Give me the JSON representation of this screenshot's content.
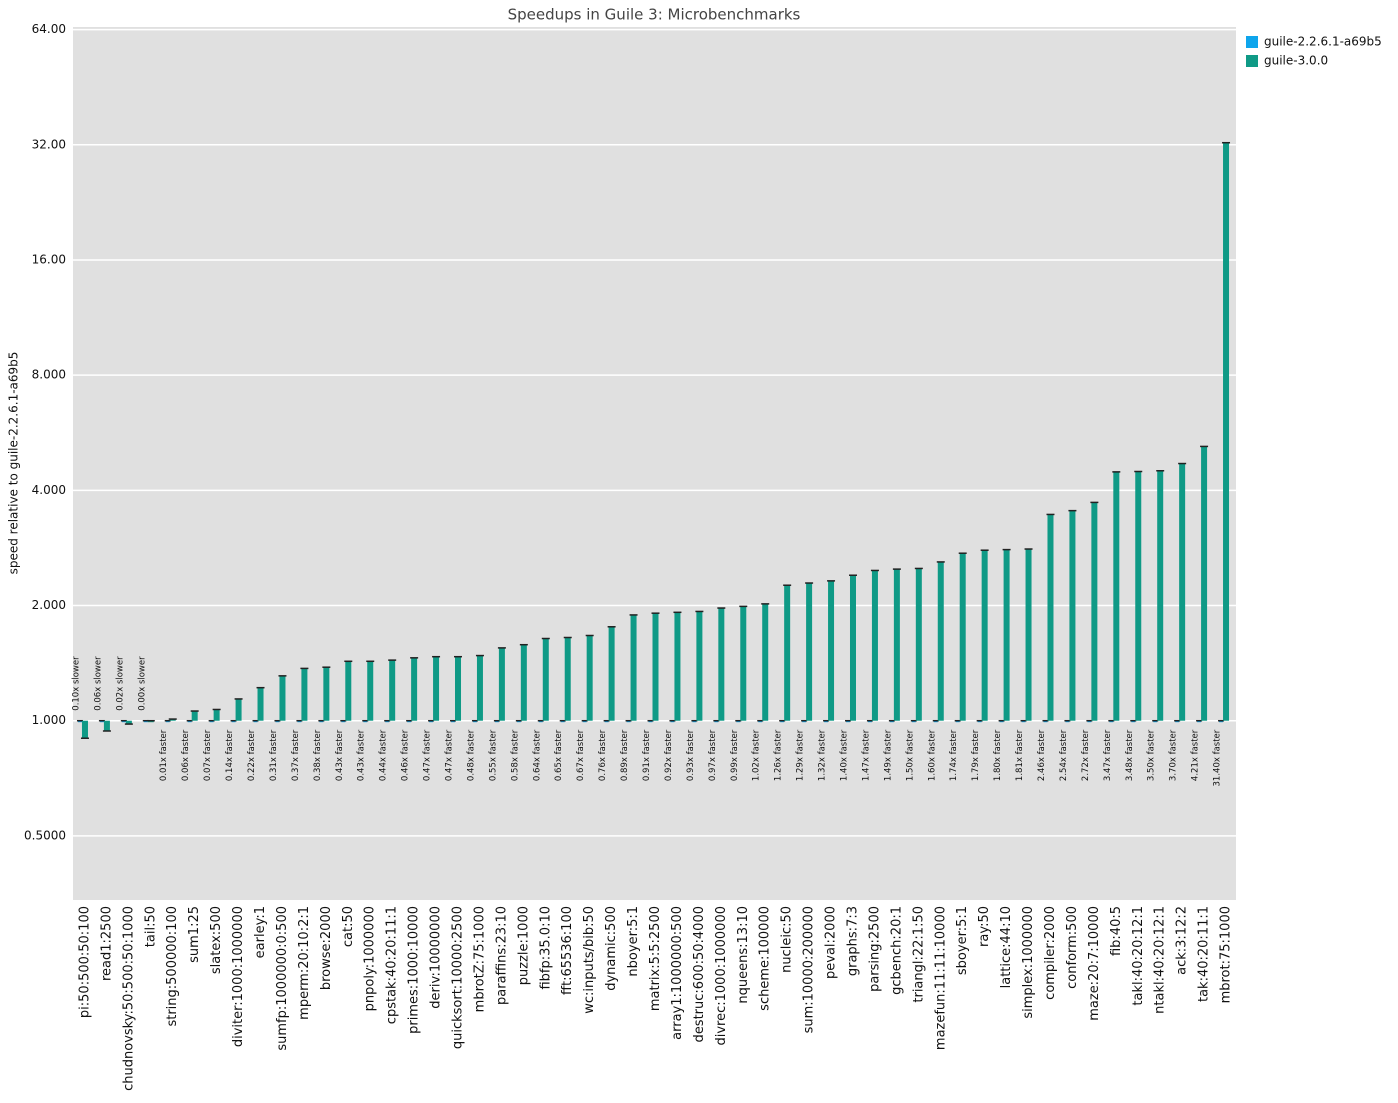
{
  "chart_data": {
    "type": "bar",
    "title": "Speedups in Guile 3: Microbenchmarks",
    "ylabel": "speed relative to guile-2.2.6.1-a69b5",
    "yscale": "log",
    "log_base": 2,
    "grid": true,
    "legend": "top-right",
    "ylim": [
      0.34,
      65
    ],
    "yticks": [
      {
        "value": 0.5,
        "label": "0.5000"
      },
      {
        "value": 1,
        "label": "1.000"
      },
      {
        "value": 2,
        "label": "2.000"
      },
      {
        "value": 4,
        "label": "4.000"
      },
      {
        "value": 8,
        "label": "8.000"
      },
      {
        "value": 16,
        "label": "16.00"
      },
      {
        "value": 32,
        "label": "32.00"
      },
      {
        "value": 64,
        "label": "64.00"
      }
    ],
    "categories": [
      "pi:50:500:50:100",
      "read1:2500",
      "chudnovsky:50:500:50:1000",
      "tail:50",
      "string:500000:100",
      "sum1:25",
      "slatex:500",
      "diviter:1000:1000000",
      "earley:1",
      "sumfp:1000000:0:500",
      "mperm:20:10:2:1",
      "browse:2000",
      "cat:50",
      "pnpoly:1000000",
      "cpstak:40:20:11:1",
      "primes:1000:10000",
      "deriv:10000000",
      "quicksort:10000:2500",
      "mbrotZ:75:1000",
      "paraffins:23:10",
      "puzzle:1000",
      "fibfp:35.0:10",
      "fft:65536:100",
      "wc:inputs/bib:50",
      "dynamic:500",
      "nboyer:5:1",
      "matrix:5:5:2500",
      "array1:1000000:500",
      "destruc:600:50:4000",
      "divrec:1000:1000000",
      "nqueens:13:10",
      "scheme:100000",
      "nucleic:50",
      "sum:10000:200000",
      "peval:2000",
      "graphs:7:3",
      "parsing:2500",
      "gcbench:20:1",
      "triangl:22:1:50",
      "mazefun:11:11:10000",
      "sboyer:5:1",
      "ray:50",
      "lattice:44:10",
      "simplex:1000000",
      "compiler:2000",
      "conform:500",
      "maze:20:7:10000",
      "fib:40:5",
      "takl:40:20:12:1",
      "ntakl:40:20:12:1",
      "ack:3:12:2",
      "tak:40:20:11:1",
      "mbrot:75:1000"
    ],
    "series": [
      {
        "name": "guile-2.2.6.1-a69b5",
        "color": "#0ea5ec",
        "values": [
          1,
          1,
          1,
          1,
          1,
          1,
          1,
          1,
          1,
          1,
          1,
          1,
          1,
          1,
          1,
          1,
          1,
          1,
          1,
          1,
          1,
          1,
          1,
          1,
          1,
          1,
          1,
          1,
          1,
          1,
          1,
          1,
          1,
          1,
          1,
          1,
          1,
          1,
          1,
          1,
          1,
          1,
          1,
          1,
          1,
          1,
          1,
          1,
          1,
          1,
          1,
          1,
          1
        ]
      },
      {
        "name": "guile-3.0.0",
        "color": "#0f9a86",
        "values": [
          0.9,
          0.94,
          0.98,
          1.0,
          1.01,
          1.06,
          1.07,
          1.14,
          1.22,
          1.31,
          1.37,
          1.38,
          1.43,
          1.43,
          1.44,
          1.46,
          1.47,
          1.47,
          1.48,
          1.55,
          1.58,
          1.64,
          1.65,
          1.67,
          1.76,
          1.89,
          1.91,
          1.92,
          1.93,
          1.97,
          1.99,
          2.02,
          2.26,
          2.29,
          2.32,
          2.4,
          2.47,
          2.49,
          2.5,
          2.6,
          2.74,
          2.79,
          2.8,
          2.81,
          3.46,
          3.54,
          3.72,
          4.47,
          4.48,
          4.5,
          4.7,
          5.21,
          32.4
        ],
        "value_labels": [
          "0.10x slower",
          "0.06x slower",
          "0.02x slower",
          "0.00x slower",
          "0.01x faster",
          "0.06x faster",
          "0.07x faster",
          "0.14x faster",
          "0.22x faster",
          "0.31x faster",
          "0.37x faster",
          "0.38x faster",
          "0.43x faster",
          "0.43x faster",
          "0.44x faster",
          "0.46x faster",
          "0.47x faster",
          "0.47x faster",
          "0.48x faster",
          "0.55x faster",
          "0.58x faster",
          "0.64x faster",
          "0.65x faster",
          "0.67x faster",
          "0.76x faster",
          "0.89x faster",
          "0.91x faster",
          "0.92x faster",
          "0.93x faster",
          "0.97x faster",
          "0.99x faster",
          "1.02x faster",
          "1.26x faster",
          "1.29x faster",
          "1.32x faster",
          "1.40x faster",
          "1.47x faster",
          "1.49x faster",
          "1.50x faster",
          "1.60x faster",
          "1.74x faster",
          "1.79x faster",
          "1.80x faster",
          "1.81x faster",
          "2.46x faster",
          "2.54x faster",
          "2.72x faster",
          "3.47x faster",
          "3.48x faster",
          "3.50x faster",
          "3.70x faster",
          "4.21x faster",
          "31.40x faster"
        ]
      }
    ]
  }
}
